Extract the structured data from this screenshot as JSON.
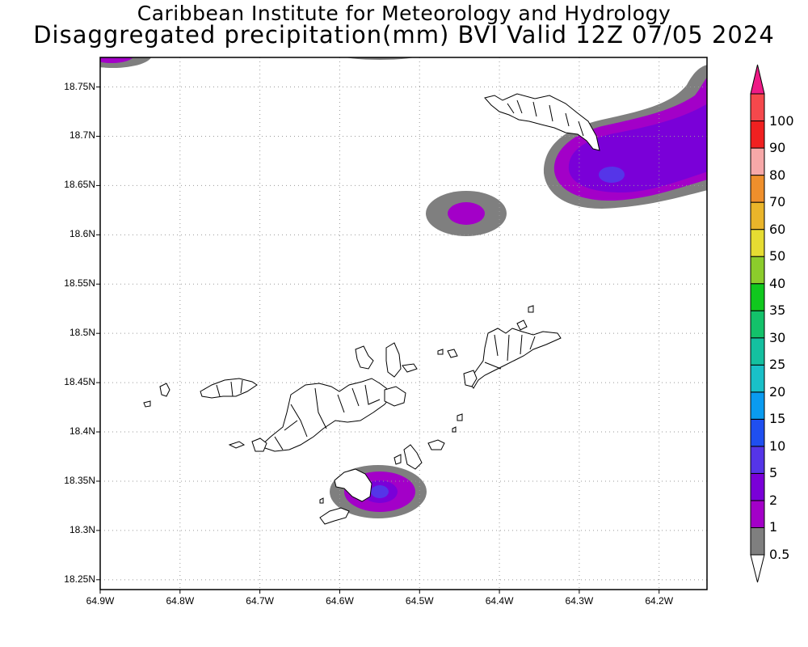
{
  "title": {
    "line1": "Caribbean Institute for Meteorology and Hydrology",
    "line2": "Disaggregated precipitation(mm) BVI Valid 12Z 07/05 2024"
  },
  "map": {
    "lon_range": [
      -64.9,
      -64.14
    ],
    "lat_range": [
      18.24,
      18.78
    ],
    "lat_ticks": [
      {
        "value": 18.25,
        "label": "18.25N"
      },
      {
        "value": 18.3,
        "label": "18.3N"
      },
      {
        "value": 18.35,
        "label": "18.35N"
      },
      {
        "value": 18.4,
        "label": "18.4N"
      },
      {
        "value": 18.45,
        "label": "18.45N"
      },
      {
        "value": 18.5,
        "label": "18.5N"
      },
      {
        "value": 18.55,
        "label": "18.55N"
      },
      {
        "value": 18.6,
        "label": "18.6N"
      },
      {
        "value": 18.65,
        "label": "18.65N"
      },
      {
        "value": 18.7,
        "label": "18.7N"
      },
      {
        "value": 18.75,
        "label": "18.75N"
      }
    ],
    "lon_ticks": [
      {
        "value": -64.9,
        "label": "64.9W"
      },
      {
        "value": -64.8,
        "label": "64.8W"
      },
      {
        "value": -64.7,
        "label": "64.7W"
      },
      {
        "value": -64.6,
        "label": "64.6W"
      },
      {
        "value": -64.5,
        "label": "64.5W"
      },
      {
        "value": -64.4,
        "label": "64.4W"
      },
      {
        "value": -64.3,
        "label": "64.3W"
      },
      {
        "value": -64.2,
        "label": "64.2W"
      }
    ],
    "grid": "dotted",
    "colors": {
      "band_0_5_1": "#7f7f7f",
      "band_1_2": "#a300c8",
      "band_2_5": "#7a00d8",
      "band_5_10": "#5535e8"
    }
  },
  "colorbar": {
    "labels": [
      "0.5",
      "1",
      "2",
      "5",
      "10",
      "15",
      "20",
      "25",
      "30",
      "35",
      "40",
      "50",
      "60",
      "70",
      "80",
      "90",
      "100"
    ],
    "colors": [
      "#7f7f7f",
      "#a300c8",
      "#7a00d8",
      "#5535e8",
      "#1f4ff0",
      "#0a9bf0",
      "#19c0c8",
      "#14c0a0",
      "#13c26a",
      "#10c81e",
      "#8ccc2c",
      "#e6dc32",
      "#eab52a",
      "#ef8f2c",
      "#f7a8a8",
      "#f02020",
      "#f5484c"
    ],
    "top_arrow_color": "#ee1a86",
    "bottom_arrow_color": "#ffffff"
  }
}
